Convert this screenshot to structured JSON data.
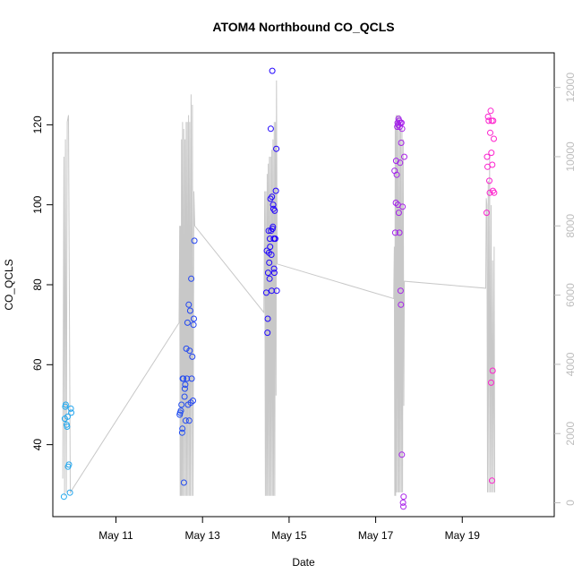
{
  "chart_data": {
    "type": "scatter",
    "title": "ATOM4 Northbound CO_QCLS",
    "xlabel": "Date",
    "ylabel": "CO_QCLS",
    "x_ticks": [
      "May 11",
      "May 13",
      "May 15",
      "May 17",
      "May 19"
    ],
    "xlim": [
      "2017-05-09 13:00",
      "2017-05-21 03:00"
    ],
    "ylim": [
      22,
      138
    ],
    "y_ticks": [
      40,
      60,
      80,
      100,
      120
    ],
    "y2_label": "",
    "y2lim": [
      -400,
      13000
    ],
    "y2_ticks": [
      0,
      2000,
      4000,
      6000,
      8000,
      10000,
      12000
    ],
    "grid": false,
    "legend": "none",
    "colors": {
      "point_gradient": [
        "#22aaee",
        "#2255ee",
        "#2200ff",
        "#9922ee",
        "#ff22cc"
      ],
      "altitude_line": "#c8c8c8"
    },
    "series": [
      {
        "values": [
          [
            "2017-05-09 19:10",
            27
          ],
          [
            "2017-05-09 19:40",
            46.5
          ],
          [
            "2017-05-09 19:55",
            49.5
          ],
          [
            "2017-05-09 20:10",
            50
          ],
          [
            "2017-05-09 20:40",
            45
          ],
          [
            "2017-05-09 20:55",
            44.5
          ],
          [
            "2017-05-09 21:10",
            47
          ],
          [
            "2017-05-09 21:25",
            34.5
          ],
          [
            "2017-05-09 21:55",
            35
          ],
          [
            "2017-05-09 22:30",
            28
          ],
          [
            "2017-05-09 23:00",
            49
          ],
          [
            "2017-05-09 23:15",
            48
          ]
        ]
      },
      {
        "values": [
          [
            "2017-05-12 11:20",
            47.5
          ],
          [
            "2017-05-12 11:35",
            48
          ],
          [
            "2017-05-12 12:00",
            48.5
          ],
          [
            "2017-05-12 12:20",
            50
          ],
          [
            "2017-05-12 12:40",
            43
          ],
          [
            "2017-05-12 12:50",
            44
          ],
          [
            "2017-05-12 13:00",
            56.5
          ],
          [
            "2017-05-12 13:20",
            56.5
          ],
          [
            "2017-05-12 13:40",
            30.5
          ],
          [
            "2017-05-12 14:00",
            52
          ],
          [
            "2017-05-12 14:10",
            54
          ],
          [
            "2017-05-12 14:25",
            55
          ],
          [
            "2017-05-12 14:40",
            46
          ],
          [
            "2017-05-12 15:00",
            64
          ],
          [
            "2017-05-12 15:20",
            56.5
          ],
          [
            "2017-05-12 15:40",
            70.5
          ],
          [
            "2017-05-12 16:00",
            50
          ],
          [
            "2017-05-12 16:20",
            75
          ],
          [
            "2017-05-12 16:35",
            46
          ],
          [
            "2017-05-12 16:50",
            63.5
          ],
          [
            "2017-05-12 17:10",
            73.5
          ],
          [
            "2017-05-12 17:30",
            50.5
          ],
          [
            "2017-05-12 17:45",
            81.5
          ],
          [
            "2017-05-12 18:00",
            56.5
          ],
          [
            "2017-05-12 18:20",
            62
          ],
          [
            "2017-05-12 18:40",
            51
          ],
          [
            "2017-05-12 19:00",
            70
          ],
          [
            "2017-05-12 19:10",
            71.5
          ],
          [
            "2017-05-12 19:30",
            91
          ]
        ]
      },
      {
        "values": [
          [
            "2017-05-14 11:20",
            78
          ],
          [
            "2017-05-14 11:40",
            88.5
          ],
          [
            "2017-05-14 12:00",
            68
          ],
          [
            "2017-05-14 12:10",
            71.5
          ],
          [
            "2017-05-14 12:20",
            83
          ],
          [
            "2017-05-14 12:40",
            93.5
          ],
          [
            "2017-05-14 12:50",
            88
          ],
          [
            "2017-05-14 13:00",
            85.5
          ],
          [
            "2017-05-14 13:10",
            81.5
          ],
          [
            "2017-05-14 13:20",
            91.5
          ],
          [
            "2017-05-14 13:30",
            89.5
          ],
          [
            "2017-05-14 13:40",
            101.5
          ],
          [
            "2017-05-14 13:50",
            119
          ],
          [
            "2017-05-14 14:00",
            93.5
          ],
          [
            "2017-05-14 14:10",
            87.5
          ],
          [
            "2017-05-14 14:20",
            78.5
          ],
          [
            "2017-05-14 14:30",
            102
          ],
          [
            "2017-05-14 14:40",
            133.5
          ],
          [
            "2017-05-14 14:50",
            94
          ],
          [
            "2017-05-14 15:00",
            94.5
          ],
          [
            "2017-05-14 15:10",
            100
          ],
          [
            "2017-05-14 15:20",
            99
          ],
          [
            "2017-05-14 15:30",
            91.5
          ],
          [
            "2017-05-14 15:40",
            84
          ],
          [
            "2017-05-14 15:50",
            83
          ],
          [
            "2017-05-14 16:00",
            98.5
          ],
          [
            "2017-05-14 16:10",
            91.5
          ],
          [
            "2017-05-14 16:20",
            91.5
          ],
          [
            "2017-05-14 16:40",
            103.5
          ],
          [
            "2017-05-14 16:55",
            114
          ],
          [
            "2017-05-14 17:10",
            78.5
          ]
        ]
      },
      {
        "values": [
          [
            "2017-05-17 10:30",
            108.5
          ],
          [
            "2017-05-17 10:50",
            93
          ],
          [
            "2017-05-17 11:10",
            100.5
          ],
          [
            "2017-05-17 11:20",
            111
          ],
          [
            "2017-05-17 11:40",
            107.5
          ],
          [
            "2017-05-17 12:00",
            119.5
          ],
          [
            "2017-05-17 12:10",
            120.5
          ],
          [
            "2017-05-17 12:20",
            100
          ],
          [
            "2017-05-17 12:30",
            120
          ],
          [
            "2017-05-17 12:40",
            121.5
          ],
          [
            "2017-05-17 12:50",
            98
          ],
          [
            "2017-05-17 13:00",
            121
          ],
          [
            "2017-05-17 13:10",
            93
          ],
          [
            "2017-05-17 13:20",
            119.5
          ],
          [
            "2017-05-17 13:30",
            110.5
          ],
          [
            "2017-05-17 13:40",
            120.5
          ],
          [
            "2017-05-17 13:50",
            78.5
          ],
          [
            "2017-05-17 14:00",
            75
          ],
          [
            "2017-05-17 14:10",
            115.5
          ],
          [
            "2017-05-17 14:20",
            120.5
          ],
          [
            "2017-05-17 14:30",
            37.5
          ],
          [
            "2017-05-17 14:40",
            119
          ],
          [
            "2017-05-17 14:55",
            99.5
          ],
          [
            "2017-05-17 15:10",
            25.5
          ],
          [
            "2017-05-17 15:20",
            24.5
          ],
          [
            "2017-05-17 15:30",
            27
          ],
          [
            "2017-05-17 15:50",
            112
          ]
        ]
      },
      {
        "values": [
          [
            "2017-05-19 13:30",
            98
          ],
          [
            "2017-05-19 13:45",
            112
          ],
          [
            "2017-05-19 14:00",
            109.5
          ],
          [
            "2017-05-19 14:20",
            122
          ],
          [
            "2017-05-19 14:40",
            121
          ],
          [
            "2017-05-19 15:00",
            106
          ],
          [
            "2017-05-19 15:15",
            103
          ],
          [
            "2017-05-19 15:30",
            118
          ],
          [
            "2017-05-19 15:45",
            123.5
          ],
          [
            "2017-05-19 16:00",
            55.5
          ],
          [
            "2017-05-19 16:10",
            113
          ],
          [
            "2017-05-19 16:20",
            121
          ],
          [
            "2017-05-19 16:30",
            31
          ],
          [
            "2017-05-19 16:40",
            110
          ],
          [
            "2017-05-19 16:50",
            58.5
          ],
          [
            "2017-05-19 17:00",
            103.5
          ],
          [
            "2017-05-19 17:10",
            121
          ],
          [
            "2017-05-19 17:30",
            116.5
          ],
          [
            "2017-05-19 17:40",
            103
          ]
        ]
      }
    ],
    "secondary_line": [
      [
        "2017-05-09 18:30",
        700
      ],
      [
        "2017-05-09 19:10",
        10000
      ],
      [
        "2017-05-09 19:30",
        200
      ],
      [
        "2017-05-09 20:00",
        10500
      ],
      [
        "2017-05-09 20:30",
        300
      ],
      [
        "2017-05-09 21:00",
        11000
      ],
      [
        "2017-05-09 21:40",
        11200
      ],
      [
        "2017-05-09 22:40",
        300
      ],
      [
        "2017-05-12 11:00",
        5200
      ],
      [
        "2017-05-12 11:20",
        8000
      ],
      [
        "2017-05-12 11:35",
        200
      ],
      [
        "2017-05-12 11:50",
        8000
      ],
      [
        "2017-05-12 12:05",
        200
      ],
      [
        "2017-05-12 12:20",
        10500
      ],
      [
        "2017-05-12 12:35",
        200
      ],
      [
        "2017-05-12 12:55",
        11000
      ],
      [
        "2017-05-12 13:10",
        200
      ],
      [
        "2017-05-12 13:35",
        10800
      ],
      [
        "2017-05-12 13:55",
        200
      ],
      [
        "2017-05-12 14:15",
        10500
      ],
      [
        "2017-05-12 14:35",
        200
      ],
      [
        "2017-05-12 14:55",
        11000
      ],
      [
        "2017-05-12 15:15",
        200
      ],
      [
        "2017-05-12 15:35",
        11000
      ],
      [
        "2017-05-12 15:55",
        200
      ],
      [
        "2017-05-12 16:15",
        11200
      ],
      [
        "2017-05-12 16:35",
        200
      ],
      [
        "2017-05-12 16:55",
        11000
      ],
      [
        "2017-05-12 17:15",
        200
      ],
      [
        "2017-05-12 17:40",
        11800
      ],
      [
        "2017-05-12 18:00",
        200
      ],
      [
        "2017-05-12 18:25",
        11500
      ],
      [
        "2017-05-12 18:45",
        200
      ],
      [
        "2017-05-12 19:10",
        9000
      ],
      [
        "2017-05-12 19:40",
        8000
      ],
      [
        "2017-05-14 10:00",
        5500
      ],
      [
        "2017-05-14 10:30",
        9000
      ],
      [
        "2017-05-14 10:50",
        200
      ],
      [
        "2017-05-14 11:10",
        9000
      ],
      [
        "2017-05-14 11:30",
        200
      ],
      [
        "2017-05-14 11:50",
        9500
      ],
      [
        "2017-05-14 12:05",
        200
      ],
      [
        "2017-05-14 12:25",
        9800
      ],
      [
        "2017-05-14 12:45",
        200
      ],
      [
        "2017-05-14 13:05",
        10000
      ],
      [
        "2017-05-14 13:25",
        200
      ],
      [
        "2017-05-14 13:45",
        10000
      ],
      [
        "2017-05-14 14:05",
        200
      ],
      [
        "2017-05-14 14:25",
        10200
      ],
      [
        "2017-05-14 14:45",
        200
      ],
      [
        "2017-05-14 15:05",
        10500
      ],
      [
        "2017-05-14 15:25",
        200
      ],
      [
        "2017-05-14 15:45",
        11000
      ],
      [
        "2017-05-14 16:05",
        200
      ],
      [
        "2017-05-14 16:25",
        11000
      ],
      [
        "2017-05-14 16:45",
        3100
      ],
      [
        "2017-05-14 17:00",
        12200
      ],
      [
        "2017-05-14 17:20",
        6900
      ],
      [
        "2017-05-17 10:00",
        5900
      ],
      [
        "2017-05-17 10:20",
        7400
      ],
      [
        "2017-05-17 10:35",
        200
      ],
      [
        "2017-05-17 10:50",
        11000
      ],
      [
        "2017-05-17 11:05",
        200
      ],
      [
        "2017-05-17 11:20",
        11200
      ],
      [
        "2017-05-17 11:35",
        300
      ],
      [
        "2017-05-17 11:55",
        11200
      ],
      [
        "2017-05-17 12:15",
        300
      ],
      [
        "2017-05-17 12:35",
        11200
      ],
      [
        "2017-05-17 12:55",
        300
      ],
      [
        "2017-05-17 13:15",
        11200
      ],
      [
        "2017-05-17 13:35",
        300
      ],
      [
        "2017-05-17 13:55",
        11000
      ],
      [
        "2017-05-17 14:15",
        300
      ],
      [
        "2017-05-17 14:35",
        10800
      ],
      [
        "2017-05-17 14:55",
        300
      ],
      [
        "2017-05-17 15:15",
        10500
      ],
      [
        "2017-05-17 15:35",
        2800
      ],
      [
        "2017-05-17 15:55",
        6400
      ],
      [
        "2017-05-19 13:00",
        6200
      ],
      [
        "2017-05-19 13:20",
        8800
      ],
      [
        "2017-05-19 13:40",
        8600
      ],
      [
        "2017-05-19 14:00",
        300
      ],
      [
        "2017-05-19 14:25",
        9300
      ],
      [
        "2017-05-19 14:45",
        300
      ],
      [
        "2017-05-19 15:10",
        10000
      ],
      [
        "2017-05-19 15:35",
        300
      ],
      [
        "2017-05-19 16:00",
        8600
      ],
      [
        "2017-05-19 16:25",
        300
      ],
      [
        "2017-05-19 16:50",
        7000
      ],
      [
        "2017-05-19 17:15",
        300
      ],
      [
        "2017-05-19 17:40",
        7400
      ],
      [
        "2017-05-19 18:00",
        300
      ]
    ]
  }
}
